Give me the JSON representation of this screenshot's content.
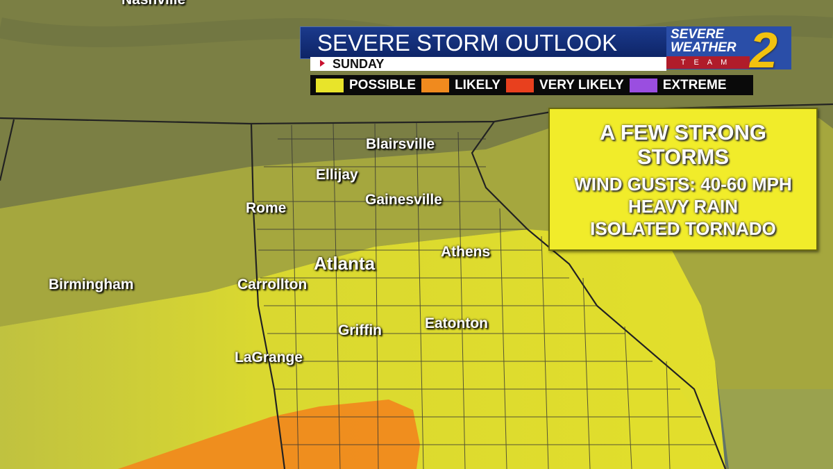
{
  "header": {
    "title": "SEVERE STORM OUTLOOK",
    "day": "SUNDAY"
  },
  "logo": {
    "line1": "SEVERE",
    "line2": "WEATHER",
    "team": "TEAM",
    "channel": "2"
  },
  "legend": [
    {
      "label": "POSSIBLE",
      "color": "#e8e42a"
    },
    {
      "label": "LIKELY",
      "color": "#f08a1e"
    },
    {
      "label": "VERY LIKELY",
      "color": "#e8401e"
    },
    {
      "label": "EXTREME",
      "color": "#9a4ee0"
    }
  ],
  "callout": {
    "headline": "A FEW STRONG STORMS",
    "lines": [
      "WIND GUSTS: 40-60 MPH",
      "HEAVY RAIN",
      "ISOLATED TORNADO"
    ]
  },
  "cities": [
    "Nashville",
    "Blairsville",
    "Ellijay",
    "Gainesville",
    "Rome",
    "Athens",
    "Atlanta",
    "Birmingham",
    "Carrollton",
    "Eatonton",
    "Griffin",
    "LaGrange"
  ],
  "risk_areas": {
    "possible": "#e8e42a",
    "likely": "#f08a1e"
  }
}
